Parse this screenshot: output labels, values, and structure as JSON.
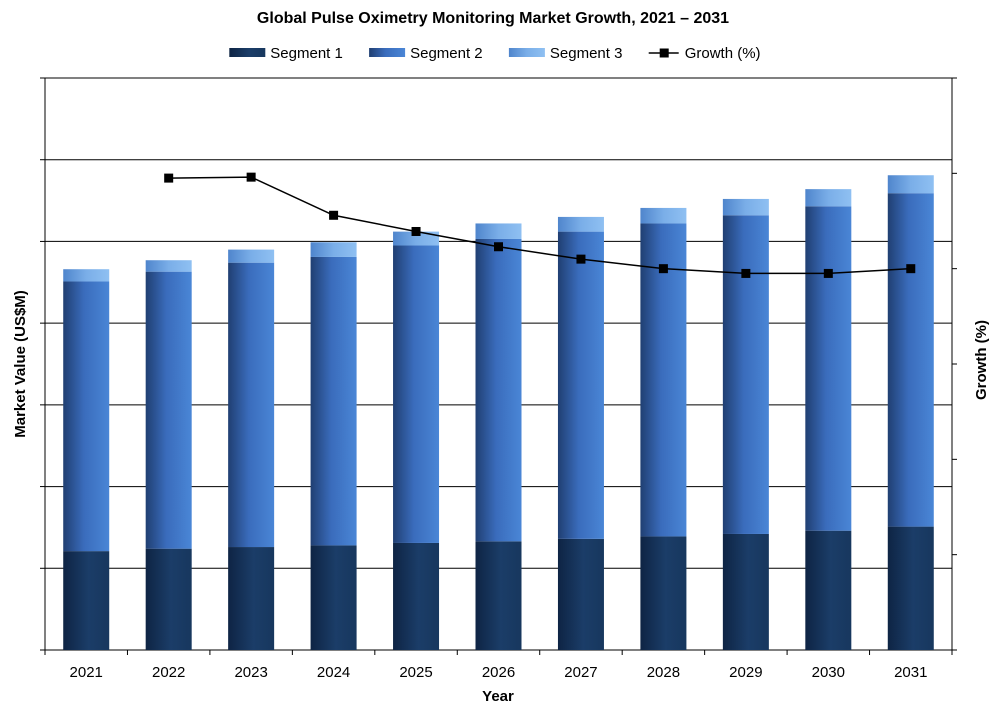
{
  "chart_data": {
    "type": "bar",
    "stacked": true,
    "title": "Global Pulse Oximetry Monitoring Market Growth, 2021 – 2031",
    "xlabel": "Year",
    "ylabel": "Market Value (US$M)",
    "y2label": "Growth (%)",
    "categories": [
      "2021",
      "2022",
      "2023",
      "2024",
      "2025",
      "2026",
      "2027",
      "2028",
      "2029",
      "2030",
      "2031"
    ],
    "ylim": [
      0,
      7
    ],
    "y2lim": [
      0,
      6
    ],
    "y_tick_labels_visible": false,
    "grid": true,
    "legend_position": "top",
    "series": [
      {
        "name": "Segment 1",
        "color": "#17375e",
        "values": [
          1.21,
          1.24,
          1.26,
          1.28,
          1.31,
          1.33,
          1.36,
          1.39,
          1.42,
          1.46,
          1.51
        ]
      },
      {
        "name": "Segment 2",
        "color": "#3a6fc4",
        "values": [
          3.3,
          3.39,
          3.48,
          3.53,
          3.64,
          3.7,
          3.76,
          3.83,
          3.9,
          3.97,
          4.08
        ]
      },
      {
        "name": "Segment 3",
        "color": "#7eb1ea",
        "values": [
          0.15,
          0.14,
          0.16,
          0.18,
          0.17,
          0.19,
          0.18,
          0.19,
          0.2,
          0.21,
          0.22
        ]
      }
    ],
    "line_series": {
      "name": "Growth (%)",
      "color": "#000000",
      "axis": "right",
      "values": [
        null,
        4.95,
        4.96,
        4.56,
        4.39,
        4.23,
        4.1,
        4.0,
        3.95,
        3.95,
        4.0
      ]
    }
  }
}
